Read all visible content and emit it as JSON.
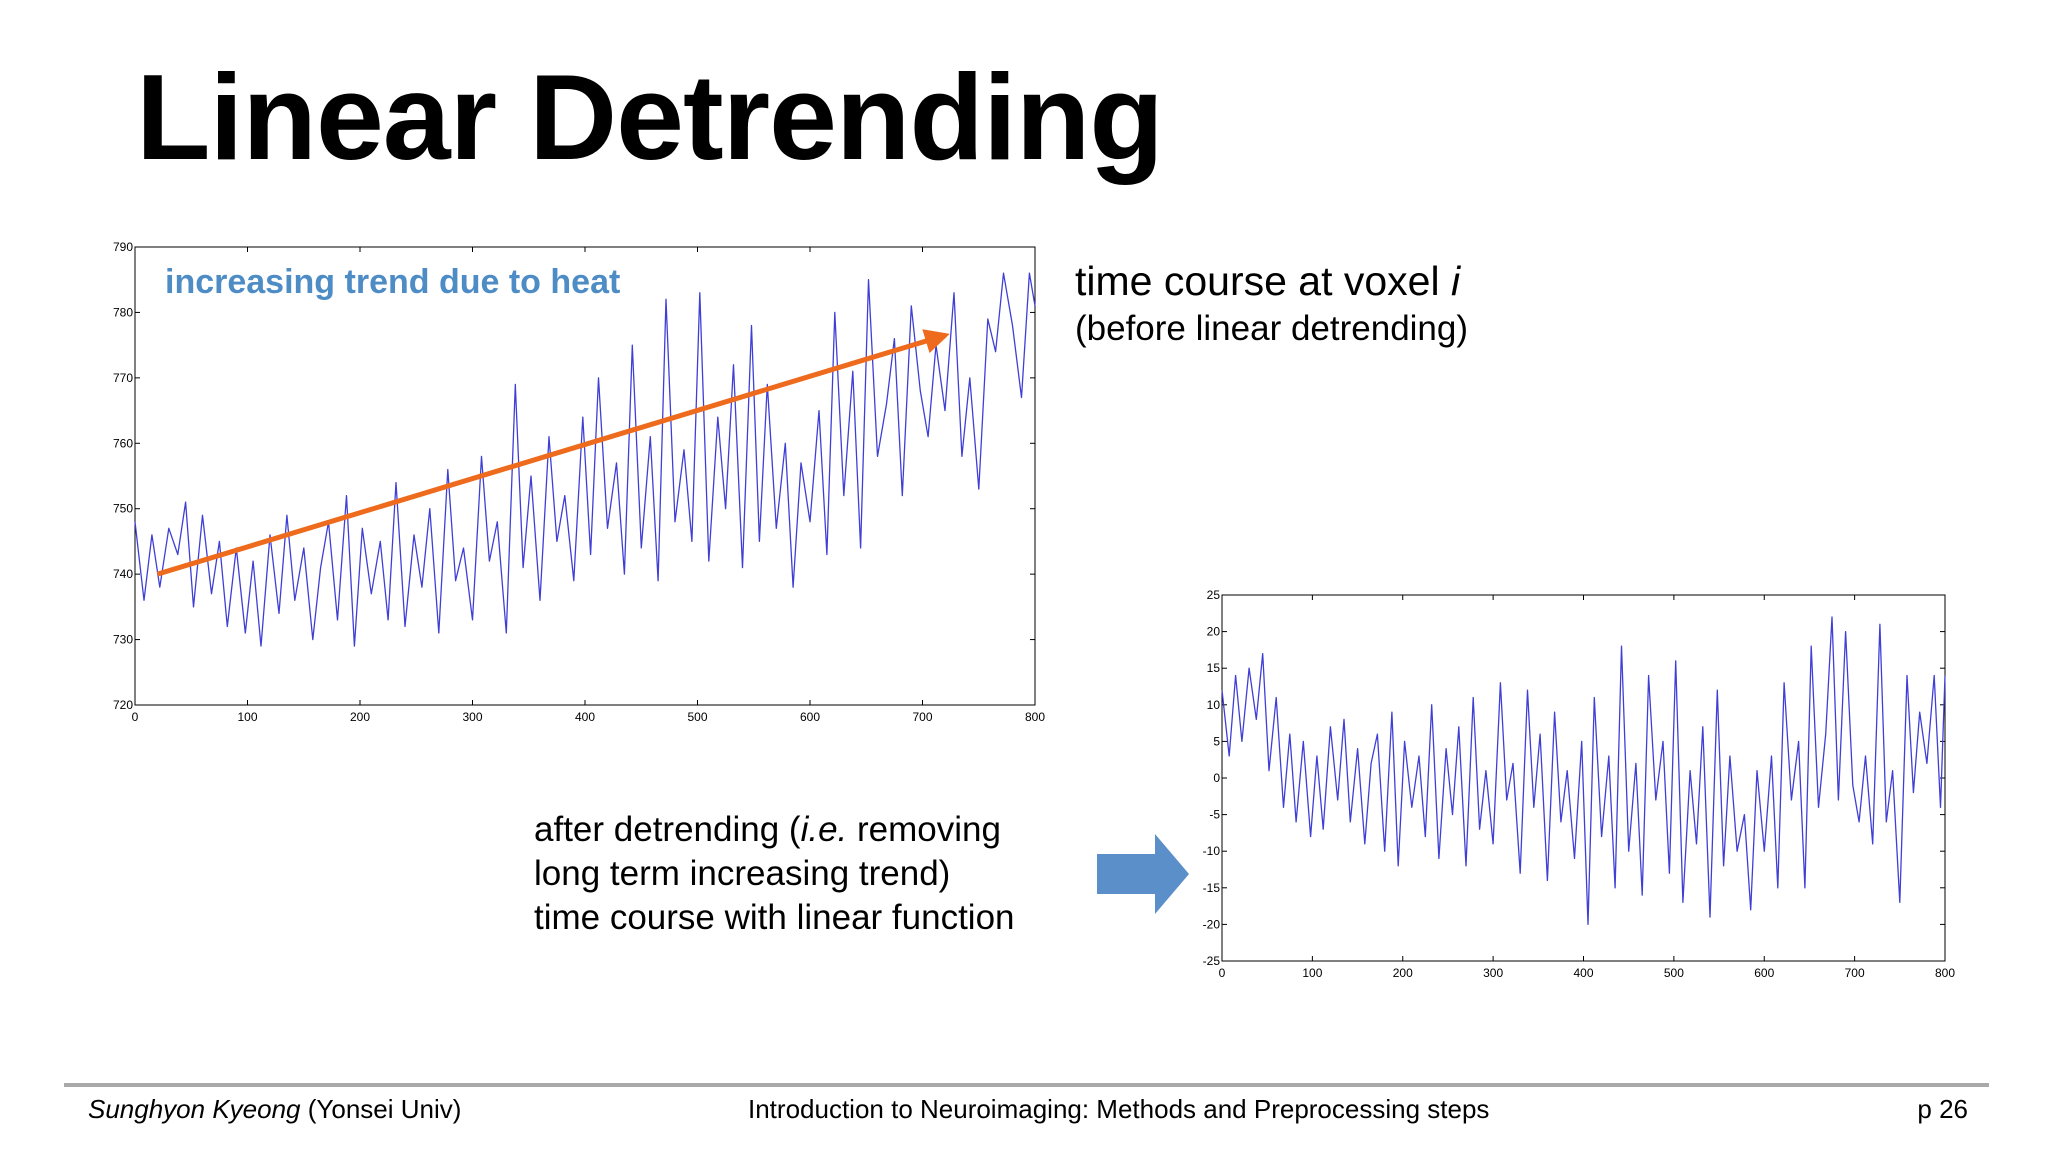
{
  "slide": {
    "title": "Linear Detrending",
    "caption_before": {
      "line1_text": "time course at voxel ",
      "line1_var": "i",
      "line2": "(before linear detrending)"
    },
    "caption_after": {
      "line1_a": "after detrending (",
      "line1_ie": "i.e.",
      "line1_b": " removing",
      "line2": "long term increasing trend)",
      "line3": "time course with linear function"
    },
    "footer": {
      "author": "Sunghyon Kyeong",
      "affiliation": " (Yonsei Univ)",
      "course": "Introduction to Neuroimaging: Methods and Preprocessing steps",
      "page": "p 26"
    }
  },
  "colors": {
    "series": "#3f3fd6",
    "trend_arrow": "#ee6a1c",
    "annotation": "#4e8cc6",
    "block_arrow": "#5b8fc9"
  },
  "icons": {
    "trend_arrow": "arrow-right-icon",
    "block_arrow": "block-arrow-right-icon"
  },
  "chart_data": [
    {
      "type": "line",
      "xlim": [
        0,
        800
      ],
      "ylim": [
        720,
        790
      ],
      "xticks": [
        0,
        100,
        200,
        300,
        400,
        500,
        600,
        700,
        800
      ],
      "yticks": [
        720,
        730,
        740,
        750,
        760,
        770,
        780,
        790
      ],
      "annotation": "increasing trend due to heat",
      "trend": {
        "x": [
          20,
          720
        ],
        "y": [
          740,
          776.5
        ]
      },
      "series": [
        {
          "x": [
            0,
            8,
            15,
            22,
            30,
            38,
            45,
            52,
            60,
            68,
            75,
            82,
            90,
            98,
            105,
            112,
            120,
            128,
            135,
            142,
            150,
            158,
            165,
            172,
            180,
            188,
            195,
            202,
            210,
            218,
            225,
            232,
            240,
            248,
            255,
            262,
            270,
            278,
            285,
            292,
            300,
            308,
            315,
            322,
            330,
            338,
            345,
            352,
            360,
            368,
            375,
            382,
            390,
            398,
            405,
            412,
            420,
            428,
            435,
            442,
            450,
            458,
            465,
            472,
            480,
            488,
            495,
            502,
            510,
            518,
            525,
            532,
            540,
            548,
            555,
            562,
            570,
            578,
            585,
            592,
            600,
            608,
            615,
            622,
            630,
            638,
            645,
            652,
            660,
            668,
            675,
            682,
            690,
            698,
            705,
            712,
            720,
            728,
            735,
            742,
            750,
            758,
            765,
            772,
            780,
            788,
            795,
            800
          ],
          "y": [
            748,
            736,
            746,
            738,
            747,
            743,
            751,
            735,
            749,
            737,
            745,
            732,
            744,
            731,
            742,
            729,
            746,
            734,
            749,
            736,
            744,
            730,
            741,
            748,
            733,
            752,
            729,
            747,
            737,
            745,
            733,
            754,
            732,
            746,
            738,
            750,
            731,
            756,
            739,
            744,
            733,
            758,
            742,
            748,
            731,
            769,
            741,
            755,
            736,
            761,
            745,
            752,
            739,
            764,
            743,
            770,
            747,
            757,
            740,
            775,
            744,
            761,
            739,
            782,
            748,
            759,
            745,
            783,
            742,
            764,
            750,
            772,
            741,
            778,
            745,
            769,
            747,
            760,
            738,
            757,
            748,
            765,
            743,
            780,
            752,
            771,
            744,
            785,
            758,
            766,
            776,
            752,
            781,
            768,
            761,
            775,
            765,
            783,
            758,
            770,
            753,
            779,
            774,
            786,
            778,
            767,
            786,
            781
          ]
        }
      ]
    },
    {
      "type": "line",
      "xlim": [
        0,
        800
      ],
      "ylim": [
        -25,
        25
      ],
      "xticks": [
        0,
        100,
        200,
        300,
        400,
        500,
        600,
        700,
        800
      ],
      "yticks": [
        -25,
        -20,
        -15,
        -10,
        -5,
        0,
        5,
        10,
        15,
        20,
        25
      ],
      "series": [
        {
          "x": [
            0,
            8,
            15,
            22,
            30,
            38,
            45,
            52,
            60,
            68,
            75,
            82,
            90,
            98,
            105,
            112,
            120,
            128,
            135,
            142,
            150,
            158,
            165,
            172,
            180,
            188,
            195,
            202,
            210,
            218,
            225,
            232,
            240,
            248,
            255,
            262,
            270,
            278,
            285,
            292,
            300,
            308,
            315,
            322,
            330,
            338,
            345,
            352,
            360,
            368,
            375,
            382,
            390,
            398,
            405,
            412,
            420,
            428,
            435,
            442,
            450,
            458,
            465,
            472,
            480,
            488,
            495,
            502,
            510,
            518,
            525,
            532,
            540,
            548,
            555,
            562,
            570,
            578,
            585,
            592,
            600,
            608,
            615,
            622,
            630,
            638,
            645,
            652,
            660,
            668,
            675,
            682,
            690,
            698,
            705,
            712,
            720,
            728,
            735,
            742,
            750,
            758,
            765,
            772,
            780,
            788,
            795,
            800
          ],
          "y": [
            12,
            3,
            14,
            5,
            15,
            8,
            17,
            1,
            11,
            -4,
            6,
            -6,
            5,
            -8,
            3,
            -7,
            7,
            -3,
            8,
            -6,
            4,
            -9,
            2,
            6,
            -10,
            9,
            -12,
            5,
            -4,
            3,
            -8,
            10,
            -11,
            4,
            -5,
            7,
            -12,
            11,
            -7,
            1,
            -9,
            13,
            -3,
            2,
            -13,
            12,
            -4,
            6,
            -14,
            9,
            -6,
            1,
            -11,
            5,
            -20,
            11,
            -8,
            3,
            -15,
            18,
            -10,
            2,
            -16,
            14,
            -3,
            5,
            -13,
            16,
            -17,
            1,
            -9,
            7,
            -19,
            12,
            -12,
            3,
            -10,
            -5,
            -18,
            1,
            -10,
            3,
            -15,
            13,
            -3,
            5,
            -15,
            18,
            -4,
            6,
            22,
            -3,
            20,
            -1,
            -6,
            3,
            -9,
            21,
            -6,
            1,
            -17,
            14,
            -2,
            9,
            2,
            14,
            -4,
            14
          ]
        }
      ]
    }
  ]
}
